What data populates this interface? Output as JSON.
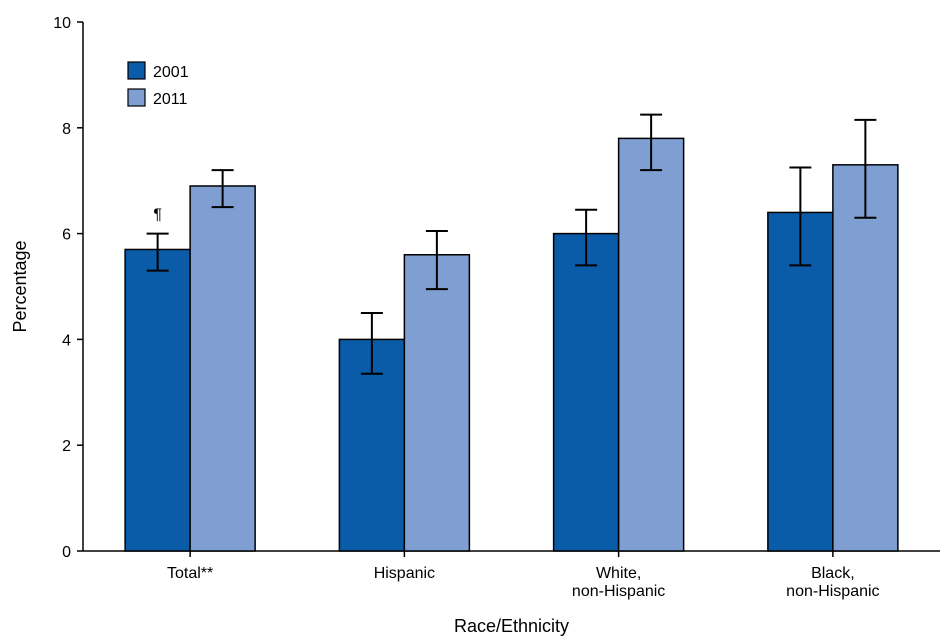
{
  "chart_data": {
    "type": "bar",
    "xlabel": "Race/Ethnicity",
    "ylabel": "Percentage",
    "ylim": [
      0,
      10
    ],
    "yticks": [
      0,
      2,
      4,
      6,
      8,
      10
    ],
    "categories": [
      {
        "lines": [
          "Total**"
        ]
      },
      {
        "lines": [
          "Hispanic"
        ]
      },
      {
        "lines": [
          "White,",
          "non-Hispanic"
        ]
      },
      {
        "lines": [
          "Black,",
          "non-Hispanic"
        ]
      }
    ],
    "series": [
      {
        "name": "2001",
        "color": "#0a5ca8",
        "values": [
          5.7,
          4.0,
          6.0,
          6.4
        ],
        "ci_low": [
          5.3,
          3.35,
          5.4,
          5.4
        ],
        "ci_high": [
          6.0,
          4.5,
          6.45,
          7.25
        ]
      },
      {
        "name": "2011",
        "color": "#7f9fd3",
        "values": [
          6.9,
          5.6,
          7.8,
          7.3
        ],
        "ci_low": [
          6.5,
          4.95,
          7.2,
          6.3
        ],
        "ci_high": [
          7.2,
          6.05,
          8.25,
          8.15
        ]
      }
    ],
    "annotations": [
      {
        "category_index": 0,
        "series_index": 0,
        "text": "¶"
      }
    ],
    "legend": {
      "position": "top-left"
    },
    "grid": false
  }
}
